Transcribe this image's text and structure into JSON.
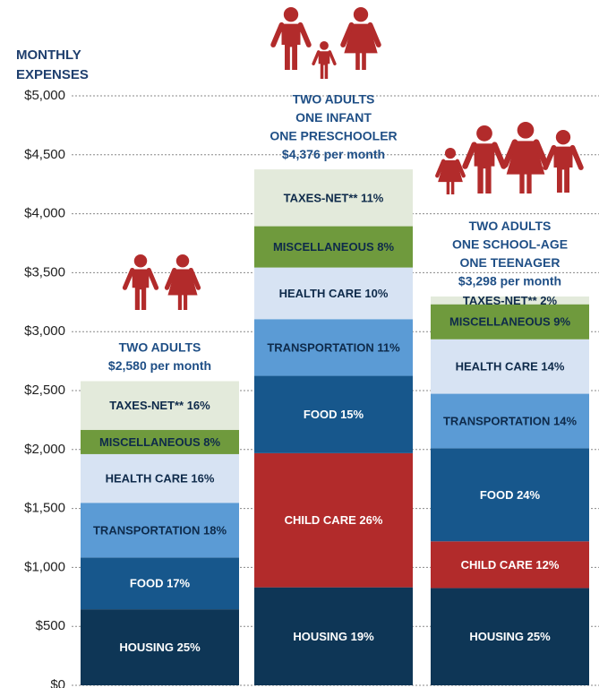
{
  "chart_data": {
    "type": "stacked_bar",
    "title": [
      "MONTHLY",
      "EXPENSES"
    ],
    "categories": [
      [
        "TWO ADULTS",
        "$2,580 per month"
      ],
      [
        "TWO ADULTS",
        "ONE INFANT",
        "ONE PRESCHOOLER",
        "$4,376 per month"
      ],
      [
        "TWO ADULTS",
        "ONE SCHOOL-AGE",
        "ONE TEENAGER",
        "$3,298 per month"
      ]
    ],
    "series": [
      {
        "name": "HOUSING",
        "color": "#0e3656",
        "text_color": "#ffffff",
        "values": [
          645,
          831,
          825
        ],
        "labels": [
          "HOUSING 25%",
          "HOUSING 19%",
          "HOUSING 25%"
        ]
      },
      {
        "name": "CHILD CARE",
        "color": "#b22b2b",
        "text_color": "#ffffff",
        "values": [
          null,
          1138,
          396
        ],
        "labels": [
          null,
          "CHILD CARE 26%",
          "CHILD CARE 12%"
        ]
      },
      {
        "name": "FOOD",
        "color": "#17578c",
        "text_color": "#ffffff",
        "values": [
          439,
          656,
          790
        ],
        "labels": [
          "FOOD 17%",
          "FOOD 15%",
          "FOOD 24%"
        ]
      },
      {
        "name": "TRANSPORTATION",
        "color": "#5b9bd5",
        "text_color": "#0e2a4a",
        "values": [
          464,
          481,
          462
        ],
        "labels": [
          "TRANSPORTATION 18%",
          "TRANSPORTATION 11%",
          "TRANSPORTATION 14%"
        ]
      },
      {
        "name": "HEALTH CARE",
        "color": "#d7e3f3",
        "text_color": "#0e2a4a",
        "values": [
          413,
          438,
          462
        ],
        "labels": [
          "HEALTH CARE 16%",
          "HEALTH CARE 10%",
          "HEALTH CARE 14%"
        ]
      },
      {
        "name": "MISCELLANEOUS",
        "color": "#6f9a3d",
        "text_color": "#0e2a4a",
        "values": [
          206,
          350,
          297
        ],
        "labels": [
          "MISCELLANEOUS 8%",
          "MISCELLANEOUS 8%",
          "MISCELLANEOUS 9%"
        ]
      },
      {
        "name": "TAXES-NET**",
        "color": "#e3eadb",
        "text_color": "#0e2a4a",
        "values": [
          413,
          482,
          66
        ],
        "labels": [
          "TAXES-NET** 16%",
          "TAXES-NET** 11%",
          "TAXES-NET** 2%"
        ]
      }
    ],
    "ylim": [
      0,
      5000
    ],
    "yticks": [
      {
        "value": 0,
        "label": "$0"
      },
      {
        "value": 500,
        "label": "$500"
      },
      {
        "value": 1000,
        "label": "$1,000"
      },
      {
        "value": 1500,
        "label": "$1,500"
      },
      {
        "value": 2000,
        "label": "$2,000"
      },
      {
        "value": 2500,
        "label": "$2,500"
      },
      {
        "value": 3000,
        "label": "$3,000"
      },
      {
        "value": 3500,
        "label": "$3,500"
      },
      {
        "value": 4000,
        "label": "$4,000"
      },
      {
        "value": 4500,
        "label": "$4,500"
      },
      {
        "value": 5000,
        "label": "$5,000"
      }
    ],
    "grid": true,
    "icon_color": "#b22b2b"
  }
}
